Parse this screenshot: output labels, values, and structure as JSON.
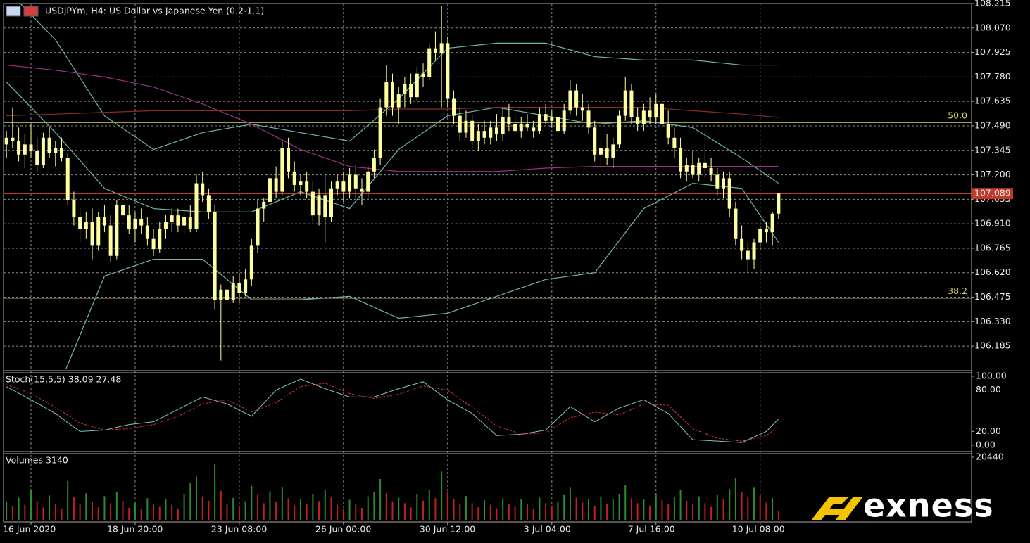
{
  "chart_data": {
    "type": "candlestick",
    "title": "USDJPYm, H4:  US Dollar vs Japanese Yen (0.2-1.1)",
    "candle_color": "#ffffa0",
    "grid": true,
    "xlim": [
      -0.48,
      157.5
    ],
    "ylim": [
      106.048,
      108.215
    ],
    "yticks": [
      108.215,
      {
        "value": 108.07,
        "label": "108.070"
      },
      107.925,
      {
        "value": 107.78,
        "label": "107.780"
      },
      107.635,
      {
        "value": 107.49,
        "label": "107.490"
      },
      107.345,
      {
        "value": 107.2,
        "label": "107.200"
      },
      107.055,
      {
        "value": 106.91,
        "label": "106.910"
      },
      106.765,
      {
        "value": 106.62,
        "label": "106.620"
      },
      106.475,
      {
        "value": 106.33,
        "label": "106.330"
      },
      106.185
    ],
    "x_labels": [
      {
        "value": 4,
        "label": "16 Jun 2020"
      },
      {
        "value": 21,
        "label": "18 Jun 20:00"
      },
      {
        "value": 38,
        "label": "23 Jun 08:00"
      },
      {
        "value": 55,
        "label": "26 Jun 00:00"
      },
      {
        "value": 72,
        "label": "30 Jun 12:00"
      },
      {
        "value": 89,
        "label": "3 Jul 04:00"
      },
      {
        "value": 106,
        "label": "7 Jul 16:00"
      },
      {
        "value": 123,
        "label": "10 Jul 08:00"
      }
    ],
    "current_price": 107.089,
    "current_price_color": "#c0392b",
    "levels": [
      {
        "label": "50.0",
        "value": 107.51,
        "color": "#d8d060"
      },
      {
        "label": "38.2",
        "value": 106.47,
        "color": "#d8d060"
      }
    ],
    "ohlc": [
      [
        107.38,
        107.46,
        107.3,
        107.42
      ],
      [
        107.42,
        107.6,
        107.36,
        107.4
      ],
      [
        107.4,
        107.48,
        107.28,
        107.32
      ],
      [
        107.32,
        107.44,
        107.24,
        107.38
      ],
      [
        107.38,
        107.5,
        107.3,
        107.34
      ],
      [
        107.34,
        107.42,
        107.22,
        107.26
      ],
      [
        107.26,
        107.45,
        107.24,
        107.42
      ],
      [
        107.42,
        107.48,
        107.3,
        107.33
      ],
      [
        107.33,
        107.4,
        107.25,
        107.36
      ],
      [
        107.36,
        107.42,
        107.28,
        107.3
      ],
      [
        107.3,
        107.33,
        107.02,
        107.05
      ],
      [
        107.05,
        107.1,
        106.9,
        106.95
      ],
      [
        106.95,
        107.0,
        106.8,
        106.88
      ],
      [
        106.88,
        106.98,
        106.82,
        106.92
      ],
      [
        106.92,
        107.0,
        106.7,
        106.78
      ],
      [
        106.78,
        106.98,
        106.75,
        106.95
      ],
      [
        106.95,
        107.02,
        106.86,
        106.9
      ],
      [
        106.9,
        106.96,
        106.68,
        106.72
      ],
      [
        106.72,
        107.05,
        106.7,
        107.02
      ],
      [
        107.02,
        107.08,
        106.92,
        106.96
      ],
      [
        106.96,
        107.02,
        106.85,
        106.88
      ],
      [
        106.88,
        106.98,
        106.8,
        106.94
      ],
      [
        106.94,
        107.0,
        106.85,
        106.9
      ],
      [
        106.9,
        106.95,
        106.78,
        106.82
      ],
      [
        106.82,
        106.88,
        106.72,
        106.76
      ],
      [
        106.76,
        106.92,
        106.74,
        106.88
      ],
      [
        106.88,
        106.96,
        106.82,
        106.92
      ],
      [
        106.92,
        107.0,
        106.86,
        106.96
      ],
      [
        106.96,
        107.0,
        106.86,
        106.9
      ],
      [
        106.9,
        106.98,
        106.85,
        106.95
      ],
      [
        106.95,
        107.02,
        106.86,
        106.88
      ],
      [
        106.88,
        107.2,
        106.86,
        107.15
      ],
      [
        107.15,
        107.22,
        107.04,
        107.08
      ],
      [
        107.08,
        107.12,
        106.94,
        106.98
      ],
      [
        106.98,
        107.02,
        106.4,
        106.46
      ],
      [
        106.46,
        106.55,
        106.1,
        106.52
      ],
      [
        106.52,
        106.56,
        106.42,
        106.46
      ],
      [
        106.46,
        106.6,
        106.44,
        106.56
      ],
      [
        106.56,
        106.62,
        106.44,
        106.5
      ],
      [
        106.5,
        106.64,
        106.48,
        106.58
      ],
      [
        106.58,
        106.82,
        106.54,
        106.78
      ],
      [
        106.78,
        107.05,
        106.74,
        107.0
      ],
      [
        107.0,
        107.06,
        106.92,
        107.04
      ],
      [
        107.04,
        107.22,
        107.0,
        107.18
      ],
      [
        107.18,
        107.25,
        107.06,
        107.1
      ],
      [
        107.1,
        107.4,
        107.08,
        107.36
      ],
      [
        107.36,
        107.42,
        107.18,
        107.22
      ],
      [
        107.22,
        107.28,
        107.1,
        107.14
      ],
      [
        107.14,
        107.2,
        107.08,
        107.16
      ],
      [
        107.16,
        107.22,
        107.06,
        107.1
      ],
      [
        107.1,
        107.16,
        106.92,
        106.96
      ],
      [
        106.96,
        107.12,
        106.9,
        107.08
      ],
      [
        107.08,
        107.2,
        106.8,
        106.95
      ],
      [
        106.95,
        107.16,
        106.92,
        107.12
      ],
      [
        107.12,
        107.2,
        107.08,
        107.16
      ],
      [
        107.16,
        107.22,
        107.04,
        107.1
      ],
      [
        107.1,
        107.24,
        107.06,
        107.2
      ],
      [
        107.2,
        107.26,
        107.06,
        107.12
      ],
      [
        107.12,
        107.18,
        107.02,
        107.1
      ],
      [
        107.1,
        107.25,
        107.06,
        107.22
      ],
      [
        107.22,
        107.35,
        107.18,
        107.3
      ],
      [
        107.3,
        107.65,
        107.26,
        107.6
      ],
      [
        107.6,
        107.85,
        107.55,
        107.75
      ],
      [
        107.75,
        107.8,
        107.55,
        107.6
      ],
      [
        107.6,
        107.72,
        107.5,
        107.68
      ],
      [
        107.68,
        107.78,
        107.6,
        107.74
      ],
      [
        107.74,
        107.8,
        107.62,
        107.66
      ],
      [
        107.66,
        107.84,
        107.64,
        107.8
      ],
      [
        107.8,
        107.86,
        107.72,
        107.78
      ],
      [
        107.78,
        107.98,
        107.76,
        107.95
      ],
      [
        107.95,
        108.05,
        107.88,
        107.92
      ],
      [
        107.92,
        108.2,
        107.6,
        107.98
      ],
      [
        107.98,
        108.02,
        107.6,
        107.65
      ],
      [
        107.65,
        107.7,
        107.5,
        107.55
      ],
      [
        107.55,
        107.6,
        107.4,
        107.45
      ],
      [
        107.45,
        107.58,
        107.42,
        107.52
      ],
      [
        107.52,
        107.56,
        107.36,
        107.4
      ],
      [
        107.4,
        107.5,
        107.34,
        107.46
      ],
      [
        107.46,
        107.52,
        107.38,
        107.42
      ],
      [
        107.42,
        107.52,
        107.38,
        107.48
      ],
      [
        107.48,
        107.56,
        107.4,
        107.44
      ],
      [
        107.44,
        107.6,
        107.4,
        107.54
      ],
      [
        107.54,
        107.62,
        107.46,
        107.5
      ],
      [
        107.5,
        107.56,
        107.44,
        107.46
      ],
      [
        107.46,
        107.54,
        107.42,
        107.5
      ],
      [
        107.5,
        107.56,
        107.46,
        107.48
      ],
      [
        107.48,
        107.52,
        107.42,
        107.46
      ],
      [
        107.46,
        107.6,
        107.44,
        107.56
      ],
      [
        107.56,
        107.62,
        107.5,
        107.52
      ],
      [
        107.52,
        107.58,
        107.48,
        107.54
      ],
      [
        107.54,
        107.6,
        107.42,
        107.46
      ],
      [
        107.46,
        107.62,
        107.44,
        107.58
      ],
      [
        107.58,
        107.76,
        107.56,
        107.7
      ],
      [
        107.7,
        107.74,
        107.55,
        107.6
      ],
      [
        107.6,
        107.68,
        107.52,
        107.58
      ],
      [
        107.58,
        107.62,
        107.44,
        107.48
      ],
      [
        107.48,
        107.52,
        107.28,
        107.32
      ],
      [
        107.32,
        107.4,
        107.24,
        107.36
      ],
      [
        107.36,
        107.44,
        107.26,
        107.3
      ],
      [
        107.3,
        107.42,
        107.24,
        107.38
      ],
      [
        107.38,
        107.58,
        107.36,
        107.55
      ],
      [
        107.55,
        107.78,
        107.52,
        107.7
      ],
      [
        107.7,
        107.74,
        107.5,
        107.54
      ],
      [
        107.54,
        107.6,
        107.46,
        107.5
      ],
      [
        107.5,
        107.62,
        107.46,
        107.58
      ],
      [
        107.58,
        107.66,
        107.5,
        107.54
      ],
      [
        107.54,
        107.68,
        107.5,
        107.62
      ],
      [
        107.62,
        107.66,
        107.46,
        107.5
      ],
      [
        107.5,
        107.58,
        107.38,
        107.42
      ],
      [
        107.42,
        107.48,
        107.3,
        107.36
      ],
      [
        107.36,
        107.42,
        107.18,
        107.22
      ],
      [
        107.22,
        107.3,
        107.16,
        107.26
      ],
      [
        107.26,
        107.34,
        107.18,
        107.2
      ],
      [
        107.2,
        107.3,
        107.16,
        107.27
      ],
      [
        107.27,
        107.38,
        107.18,
        107.24
      ],
      [
        107.24,
        107.3,
        107.16,
        107.2
      ],
      [
        107.2,
        107.24,
        107.08,
        107.12
      ],
      [
        107.12,
        107.22,
        107.06,
        107.18
      ],
      [
        107.18,
        107.22,
        106.95,
        107.0
      ],
      [
        107.0,
        107.04,
        106.78,
        106.82
      ],
      [
        106.82,
        106.9,
        106.7,
        106.75
      ],
      [
        106.75,
        106.8,
        106.62,
        106.7
      ],
      [
        106.7,
        106.82,
        106.64,
        106.8
      ],
      [
        106.8,
        106.9,
        106.75,
        106.88
      ],
      [
        106.88,
        106.92,
        106.8,
        106.86
      ],
      [
        106.86,
        106.98,
        106.78,
        106.97
      ],
      [
        106.97,
        107.09,
        106.94,
        107.089
      ]
    ],
    "overlay_x": [
      0,
      8,
      16,
      24,
      32,
      40,
      48,
      56,
      64,
      72,
      80,
      88,
      96,
      104,
      112,
      120,
      126
    ],
    "overlays": [
      {
        "color": "#6fb8a4",
        "values": [
          108.3,
          108.0,
          107.55,
          107.35,
          107.45,
          107.5,
          107.45,
          107.4,
          107.65,
          107.95,
          107.98,
          107.98,
          107.9,
          107.88,
          107.88,
          107.85,
          107.85
        ]
      },
      {
        "color": "#6fb8a4",
        "values": [
          107.75,
          107.45,
          107.12,
          107.0,
          106.98,
          106.98,
          107.1,
          107.0,
          107.35,
          107.55,
          107.6,
          107.55,
          107.5,
          107.52,
          107.48,
          107.3,
          107.15
        ]
      },
      {
        "color": "#6fb8a4",
        "values": [
          106.0,
          105.9,
          106.6,
          106.7,
          106.7,
          106.46,
          106.46,
          106.48,
          106.35,
          106.38,
          106.48,
          106.58,
          106.62,
          107.0,
          107.15,
          107.12,
          106.8
        ]
      },
      {
        "color": "#a0308a",
        "values": [
          107.85,
          107.82,
          107.78,
          107.72,
          107.62,
          107.5,
          107.35,
          107.25,
          107.22,
          107.22,
          107.22,
          107.24,
          107.25,
          107.25,
          107.25,
          107.25,
          107.25
        ]
      },
      {
        "color": "#8a2a2a",
        "values": [
          107.55,
          107.56,
          107.57,
          107.58,
          107.58,
          107.58,
          107.58,
          107.58,
          107.59,
          107.59,
          107.6,
          107.6,
          107.6,
          107.6,
          107.58,
          107.56,
          107.54
        ]
      }
    ],
    "stochastic": {
      "title": "Stoch(15,5,5) 38.09 27.48",
      "ylim": [
        0,
        100
      ],
      "yticks": [
        {
          "value": 100,
          "label": "100.00"
        },
        {
          "value": 80,
          "label": "80.00"
        },
        {
          "value": 20,
          "label": "20.00"
        },
        {
          "value": 0,
          "label": "0.00"
        }
      ],
      "x": [
        0,
        4,
        8,
        12,
        16,
        20,
        24,
        28,
        32,
        36,
        40,
        44,
        48,
        52,
        56,
        60,
        64,
        68,
        72,
        76,
        80,
        84,
        88,
        92,
        96,
        100,
        104,
        108,
        112,
        116,
        120,
        124,
        126
      ],
      "series": [
        {
          "color": "#7fc7b9",
          "dash": false,
          "values": [
            85,
            66,
            46,
            20,
            22,
            30,
            34,
            52,
            70,
            60,
            42,
            80,
            96,
            82,
            70,
            70,
            82,
            92,
            66,
            46,
            14,
            16,
            22,
            56,
            34,
            54,
            66,
            46,
            8,
            6,
            4,
            20,
            38.09
          ]
        },
        {
          "color": "#e03030",
          "dash": true,
          "values": [
            88,
            75,
            55,
            32,
            22,
            24,
            30,
            42,
            60,
            66,
            48,
            62,
            85,
            90,
            75,
            68,
            74,
            86,
            80,
            55,
            28,
            16,
            18,
            40,
            48,
            44,
            60,
            58,
            24,
            10,
            6,
            14,
            27.48
          ]
        }
      ]
    },
    "volume": {
      "title": "Volumes 3140",
      "ylim": [
        0,
        20440
      ],
      "yticks": [
        20440
      ],
      "up_color": "#2e8b2e",
      "down_color": "#c02020",
      "values": [
        6200,
        4800,
        7400,
        5100,
        9800,
        6300,
        4200,
        8100,
        5200,
        3900,
        12800,
        7600,
        5400,
        8800,
        6100,
        4300,
        7900,
        5600,
        9200,
        6400,
        4100,
        5800,
        3600,
        7200,
        5300,
        4400,
        6900,
        5100,
        3800,
        8600,
        12100,
        14200,
        7800,
        6400,
        18200,
        9600,
        5400,
        7300,
        4800,
        6200,
        11200,
        8300,
        5600,
        9400,
        6100,
        10800,
        7200,
        4900,
        6800,
        5200,
        8400,
        6300,
        9800,
        7400,
        5100,
        3800,
        6700,
        5200,
        4100,
        7800,
        9200,
        13400,
        8800,
        6200,
        7400,
        5600,
        4200,
        8600,
        6400,
        9800,
        7200,
        15800,
        9400,
        6800,
        5400,
        7900,
        5600,
        4300,
        6600,
        5100,
        3900,
        7200,
        5400,
        4600,
        6800,
        5200,
        3700,
        7400,
        5600,
        4800,
        6200,
        8200,
        10600,
        7400,
        5800,
        6900,
        4600,
        7800,
        5400,
        6800,
        8600,
        11400,
        7200,
        5600,
        6900,
        4800,
        8400,
        6600,
        5200,
        7600,
        9800,
        6400,
        5200,
        7800,
        5600,
        4400,
        8200,
        6800,
        10200,
        13800,
        9200,
        7400,
        10600,
        8200,
        5800,
        7200,
        3140
      ]
    }
  },
  "logo": "exness"
}
